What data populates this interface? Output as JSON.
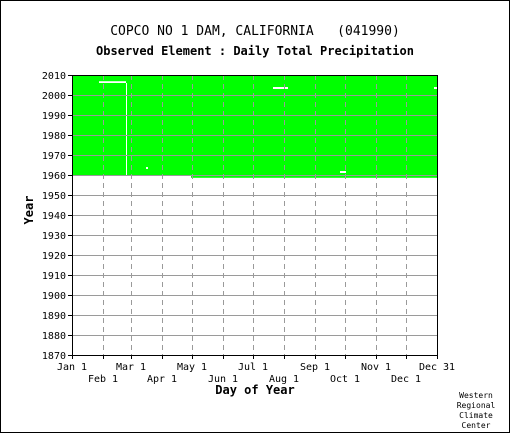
{
  "chart_data": {
    "type": "heatmap",
    "title": "COPCO NO 1 DAM, CALIFORNIA   (041990)",
    "subtitle": "Observed Element : Daily Total Precipitation",
    "xlabel": "Day of Year",
    "ylabel": "Year",
    "xlim": [
      1,
      366
    ],
    "ylim": [
      1870,
      2010
    ],
    "yticks": [
      1870,
      1880,
      1890,
      1900,
      1910,
      1920,
      1930,
      1940,
      1950,
      1960,
      1970,
      1980,
      1990,
      2000,
      2010
    ],
    "xticks_upper": [
      {
        "label": "Jan 1",
        "day": 1
      },
      {
        "label": "Mar 1",
        "day": 60
      },
      {
        "label": "May 1",
        "day": 121
      },
      {
        "label": "Jul 1",
        "day": 182
      },
      {
        "label": "Sep 1",
        "day": 244
      },
      {
        "label": "Nov 1",
        "day": 305
      },
      {
        "label": "Dec 31",
        "day": 366
      }
    ],
    "xticks_lower": [
      {
        "label": "Feb 1",
        "day": 32
      },
      {
        "label": "Apr 1",
        "day": 91
      },
      {
        "label": "Jun 1",
        "day": 152
      },
      {
        "label": "Aug 1",
        "day": 213
      },
      {
        "label": "Oct 1",
        "day": 274
      },
      {
        "label": "Dec 1",
        "day": 335
      }
    ],
    "grid": true,
    "data_color": "#00ff00",
    "observed_periods": [
      {
        "day_start": 1,
        "day_end": 120,
        "year_start": 1959.5,
        "year_end": 2010
      },
      {
        "day_start": 120,
        "day_end": 366,
        "year_start": 1958.6,
        "year_end": 2010
      }
    ],
    "missing_periods": [
      {
        "day_start": 28,
        "day_end": 55,
        "year_start": 2006,
        "year_end": 2006.9
      },
      {
        "day_start": 55,
        "day_end": 56,
        "year_start": 1960,
        "year_end": 2006
      },
      {
        "day_start": 75,
        "day_end": 77,
        "year_start": 1963,
        "year_end": 1964
      },
      {
        "day_start": 202,
        "day_end": 217,
        "year_start": 2003,
        "year_end": 2004
      },
      {
        "day_start": 269,
        "day_end": 275,
        "year_start": 1961,
        "year_end": 1962
      },
      {
        "day_start": 363,
        "day_end": 366,
        "year_start": 2003,
        "year_end": 2004
      }
    ]
  },
  "credit": [
    "Western",
    "Regional",
    "Climate",
    "Center"
  ]
}
